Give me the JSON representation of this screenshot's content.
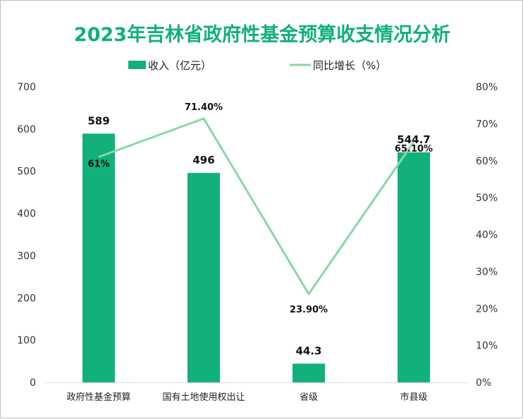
{
  "chart_data": {
    "type": "bar+line",
    "title": "2023年吉林省政府性基金预算收支情况分析",
    "categories": [
      "政府性基金预算",
      "国有土地使用权出让",
      "省级",
      "市县级"
    ],
    "series": [
      {
        "name": "收入（亿元）",
        "type": "bar",
        "axis": "left",
        "values": [
          589,
          496,
          44.3,
          544.7
        ],
        "labels": [
          "589",
          "496",
          "44.3",
          "544.7"
        ],
        "color": "#12b07a"
      },
      {
        "name": "同比增长（%）",
        "type": "line",
        "axis": "right",
        "values": [
          61,
          71.4,
          23.9,
          65.1
        ],
        "labels": [
          "61%",
          "71.40%",
          "23.90%",
          "65.10%"
        ],
        "color": "#86d9a6"
      }
    ],
    "left_axis": {
      "range": [
        0,
        700
      ],
      "ticks": [
        "0",
        "100",
        "200",
        "300",
        "400",
        "500",
        "600",
        "700"
      ]
    },
    "right_axis": {
      "range": [
        0,
        80
      ],
      "ticks": [
        "0%",
        "10%",
        "20%",
        "30%",
        "40%",
        "50%",
        "60%",
        "70%",
        "80%"
      ]
    },
    "grid": false,
    "legend": "top"
  }
}
